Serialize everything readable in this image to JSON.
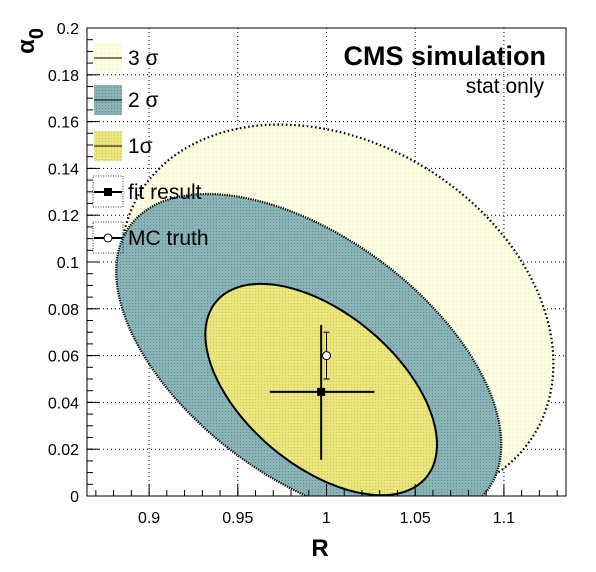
{
  "chart_data": {
    "type": "scatter",
    "title": "CMS simulation",
    "subtitle": "stat only",
    "xlabel": "R",
    "ylabel_main": "α",
    "ylabel_sub": "0",
    "xlim": [
      0.865,
      1.135
    ],
    "ylim": [
      0,
      0.2
    ],
    "x_ticks": [
      "0.9",
      "0.95",
      "1",
      "1.05",
      "1.1"
    ],
    "y_ticks": [
      "0",
      "0.02",
      "0.04",
      "0.06",
      "0.08",
      "0.1",
      "0.12",
      "0.14",
      "0.16",
      "0.18",
      "0.2"
    ],
    "grid": true,
    "legend_position": "top-left",
    "colors": {
      "sigma3": "#fdfde2",
      "sigma2": "#86b0b3",
      "sigma1": "#e8e27a",
      "contour": "#000000"
    },
    "legend": [
      {
        "label": "3 σ",
        "kind": "band",
        "color": "#fdfde2"
      },
      {
        "label": "2 σ",
        "kind": "band",
        "color": "#86b0b3"
      },
      {
        "label": "1σ",
        "kind": "band",
        "color": "#e8e27a"
      },
      {
        "label": "fit result",
        "kind": "filled-marker"
      },
      {
        "label": "MC truth",
        "kind": "open-marker"
      }
    ],
    "contours": [
      {
        "name": "3 σ",
        "center": [
          1.006,
          0.078
        ],
        "semi_axes": [
          0.096,
          0.026
        ],
        "angle_deg": 58.5
      },
      {
        "name": "2 σ",
        "center": [
          0.99,
          0.059
        ],
        "semi_axes": [
          0.068,
          0.025
        ],
        "angle_deg": 53.5
      },
      {
        "name": "1σ",
        "center": [
          0.997,
          0.0455
        ],
        "semi_axes": [
          0.043,
          0.0154
        ],
        "angle_deg": 50
      }
    ],
    "fit_result": {
      "x": 0.997,
      "y": 0.0445,
      "x_err": [
        0.968,
        1.027
      ],
      "y_err": [
        0.0155,
        0.073
      ]
    },
    "mc_truth": {
      "x": 1.0,
      "y": 0.06,
      "y_err": [
        0.05,
        0.07
      ]
    }
  }
}
